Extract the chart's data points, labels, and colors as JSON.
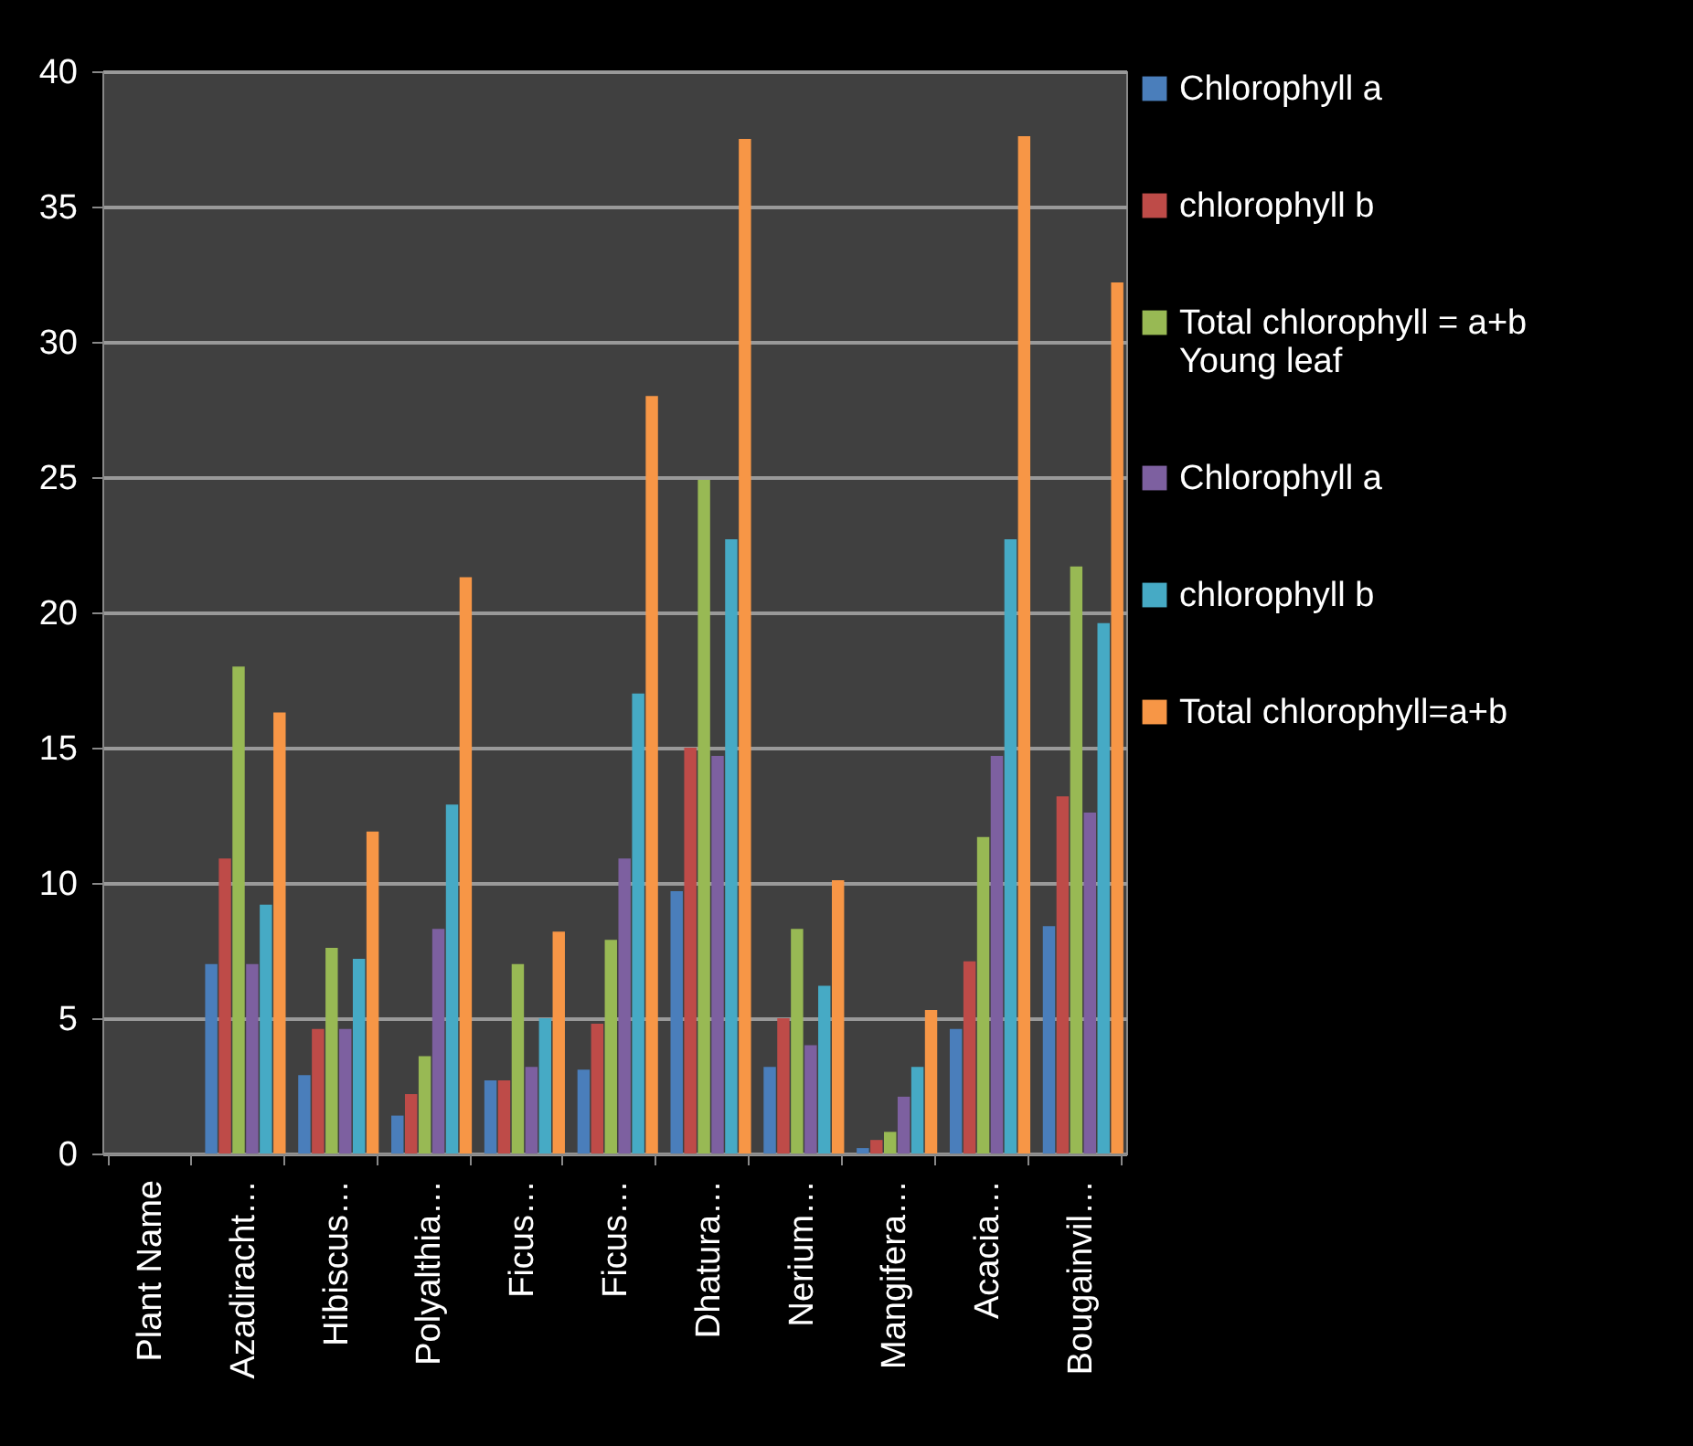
{
  "chart_data": {
    "type": "bar",
    "categories": [
      "Plant Name",
      "Azadiracht…",
      "Hibiscus…",
      "Polyalthia…",
      "Ficus…",
      "Ficus…",
      "Dhatura…",
      "Nerium…",
      "Mangifera…",
      "Acacia…",
      "Bougainvil…"
    ],
    "series": [
      {
        "name": "Chlorophyll a",
        "color": "#4a7ebb",
        "values": [
          0,
          7.0,
          2.9,
          1.4,
          2.7,
          3.1,
          9.7,
          3.2,
          0.2,
          4.6,
          8.4
        ]
      },
      {
        "name": "chlorophyll b",
        "color": "#be4b48",
        "values": [
          0,
          10.9,
          4.6,
          2.2,
          2.7,
          4.8,
          15.0,
          5.0,
          0.5,
          7.1,
          13.2
        ]
      },
      {
        "name": "Total chlorophyll  = a+b\nYoung leaf",
        "color": "#98b954",
        "values": [
          0,
          18.0,
          7.6,
          3.6,
          7.0,
          7.9,
          24.9,
          8.3,
          0.8,
          11.7,
          21.7
        ]
      },
      {
        "name": "Chlorophyll a",
        "color": "#7d60a0",
        "values": [
          0,
          7.0,
          4.6,
          8.3,
          3.2,
          10.9,
          14.7,
          4.0,
          2.1,
          14.7,
          12.6
        ]
      },
      {
        "name": "chlorophyll b",
        "color": "#46aac5",
        "values": [
          0,
          9.2,
          7.2,
          12.9,
          5.0,
          17.0,
          22.7,
          6.2,
          3.2,
          22.7,
          19.6
        ]
      },
      {
        "name": "Total chlorophyll=a+b",
        "color": "#f79646",
        "values": [
          0,
          16.3,
          11.9,
          21.3,
          8.2,
          28.0,
          37.5,
          10.1,
          5.3,
          37.6,
          32.2
        ]
      }
    ],
    "ylim": [
      0,
      40
    ],
    "yticks": [
      0,
      5,
      10,
      15,
      20,
      25,
      30,
      35,
      40
    ],
    "grid": "y",
    "legend": "right"
  }
}
